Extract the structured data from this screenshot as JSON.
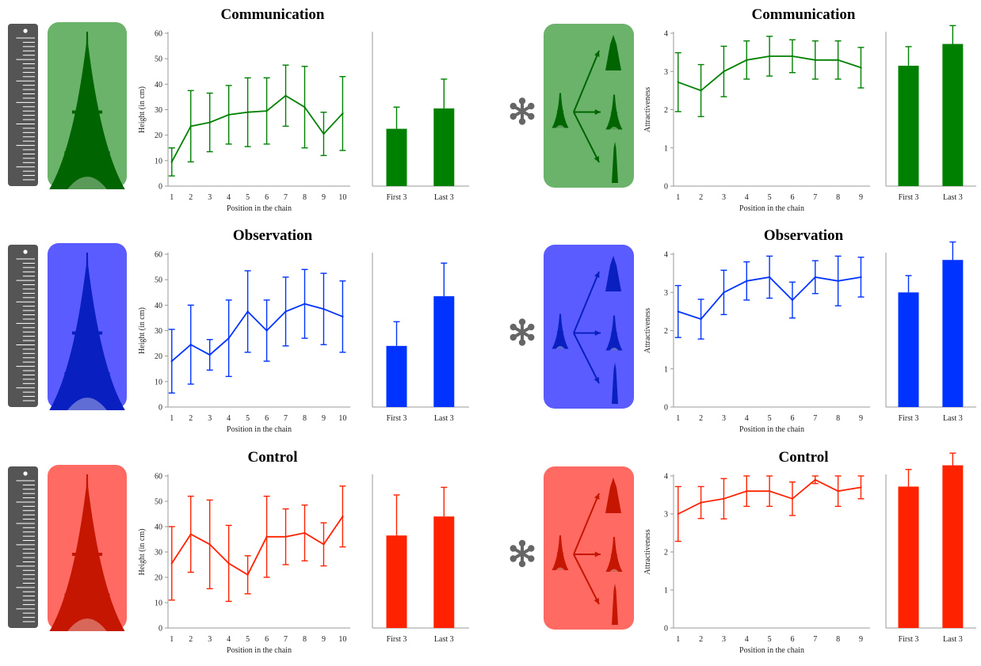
{
  "chart_data": [
    {
      "type": "line",
      "title": "Communication",
      "color": "#008000",
      "panel": "height-communication",
      "xlabel": "Position in the chain",
      "ylabel": "Height (in cm)",
      "x": [
        1,
        2,
        3,
        4,
        5,
        6,
        7,
        8,
        9,
        10
      ],
      "ylim": [
        0,
        60
      ],
      "yticks": [
        0,
        10,
        20,
        30,
        40,
        50,
        60
      ],
      "values": [
        9.5,
        23.5,
        25,
        28,
        29,
        29.5,
        35.5,
        31,
        20.5,
        28.5
      ],
      "errors": [
        5.5,
        14,
        11.5,
        11.5,
        13.5,
        13,
        12,
        16,
        8.5,
        14.5
      ],
      "summary": {
        "type": "bar",
        "categories": [
          "First 3",
          "Last 3"
        ],
        "values": [
          22.5,
          30.5
        ],
        "errors": [
          8.5,
          11.5
        ]
      }
    },
    {
      "type": "line",
      "title": "Communication",
      "color": "#008000",
      "panel": "attractiveness-communication",
      "xlabel": "Position in the chain",
      "ylabel": "Attractiveness",
      "x": [
        1,
        2,
        3,
        4,
        5,
        6,
        7,
        8,
        9
      ],
      "ylim": [
        0,
        4
      ],
      "yticks": [
        0,
        1,
        2,
        3,
        4
      ],
      "values": [
        2.72,
        2.5,
        3.0,
        3.3,
        3.4,
        3.4,
        3.3,
        3.3,
        3.1
      ],
      "errors": [
        0.77,
        0.68,
        0.66,
        0.5,
        0.52,
        0.43,
        0.5,
        0.5,
        0.53
      ],
      "summary": {
        "type": "bar",
        "categories": [
          "First 3",
          "Last 3"
        ],
        "values": [
          3.15,
          3.72
        ],
        "errors": [
          0.5,
          0.48
        ]
      }
    },
    {
      "type": "line",
      "title": "Observation",
      "color": "#0033ff",
      "panel": "height-observation",
      "xlabel": "Position in the chain",
      "ylabel": "Height (in cm)",
      "x": [
        1,
        2,
        3,
        4,
        5,
        6,
        7,
        8,
        9,
        10
      ],
      "ylim": [
        0,
        60
      ],
      "yticks": [
        0,
        10,
        20,
        30,
        40,
        50,
        60
      ],
      "values": [
        18,
        24.5,
        20.5,
        27,
        37.5,
        30,
        37.5,
        40.5,
        38.5,
        35.5
      ],
      "errors": [
        12.5,
        15.5,
        6,
        15,
        16,
        12,
        13.5,
        13.5,
        14,
        14
      ],
      "summary": {
        "type": "bar",
        "categories": [
          "First 3",
          "Last 3"
        ],
        "values": [
          24,
          43.5
        ],
        "errors": [
          9.5,
          13
        ]
      }
    },
    {
      "type": "line",
      "title": "Observation",
      "color": "#0033ff",
      "panel": "attractiveness-observation",
      "xlabel": "Position in the chain",
      "ylabel": "Attractiveness",
      "x": [
        1,
        2,
        3,
        4,
        5,
        6,
        7,
        8,
        9
      ],
      "ylim": [
        0,
        4
      ],
      "yticks": [
        0,
        1,
        2,
        3,
        4
      ],
      "values": [
        2.5,
        2.3,
        3.0,
        3.3,
        3.4,
        2.8,
        3.4,
        3.3,
        3.4
      ],
      "errors": [
        0.68,
        0.52,
        0.58,
        0.5,
        0.55,
        0.47,
        0.43,
        0.65,
        0.52
      ],
      "summary": {
        "type": "bar",
        "categories": [
          "First 3",
          "Last 3"
        ],
        "values": [
          3.0,
          3.85
        ],
        "errors": [
          0.44,
          0.47
        ]
      }
    },
    {
      "type": "line",
      "title": "Control",
      "color": "#ff2200",
      "panel": "height-control",
      "xlabel": "Position in the chain",
      "ylabel": "Height (in cm)",
      "x": [
        1,
        2,
        3,
        4,
        5,
        6,
        7,
        8,
        9,
        10
      ],
      "ylim": [
        0,
        60
      ],
      "yticks": [
        0,
        10,
        20,
        30,
        40,
        50,
        60
      ],
      "values": [
        25.5,
        37,
        33,
        25.5,
        21,
        36,
        36,
        37.5,
        33,
        44
      ],
      "errors": [
        14.5,
        15,
        17.5,
        15,
        7.5,
        16,
        11,
        11,
        8.5,
        12
      ],
      "summary": {
        "type": "bar",
        "categories": [
          "First 3",
          "Last 3"
        ],
        "values": [
          36.5,
          44
        ],
        "errors": [
          16,
          11.5
        ]
      }
    },
    {
      "type": "line",
      "title": "Control",
      "color": "#ff2200",
      "panel": "attractiveness-control",
      "xlabel": "Position in the chain",
      "ylabel": "Attractiveness",
      "x": [
        1,
        2,
        3,
        4,
        5,
        6,
        7,
        8,
        9
      ],
      "ylim": [
        0,
        4
      ],
      "yticks": [
        0,
        1,
        2,
        3,
        4
      ],
      "values": [
        3.0,
        3.3,
        3.4,
        3.6,
        3.6,
        3.4,
        3.9,
        3.6,
        3.7
      ],
      "errors": [
        0.72,
        0.42,
        0.53,
        0.4,
        0.4,
        0.44,
        0.1,
        0.4,
        0.3
      ],
      "summary": {
        "type": "bar",
        "categories": [
          "First 3",
          "Last 3"
        ],
        "values": [
          3.72,
          4.28
        ],
        "errors": [
          0.45,
          0.32
        ]
      }
    }
  ],
  "illustrations": {
    "rows": [
      {
        "condition": "Communication",
        "tile_color": "#6bb26b",
        "tower_color": "#006400",
        "arrows_color": "#006400"
      },
      {
        "condition": "Observation",
        "tile_color": "#5a5cff",
        "tower_color": "#0a1fbf",
        "arrows_color": "#0a1fbf"
      },
      {
        "condition": "Control",
        "tile_color": "#ff6a62",
        "tower_color": "#c41600",
        "arrows_color": "#c41600"
      }
    ],
    "left_icon": "ruler-icon",
    "middle_icon": "asterisk-icon",
    "ruler_color": "#555555",
    "asterisk_color": "#666666"
  }
}
